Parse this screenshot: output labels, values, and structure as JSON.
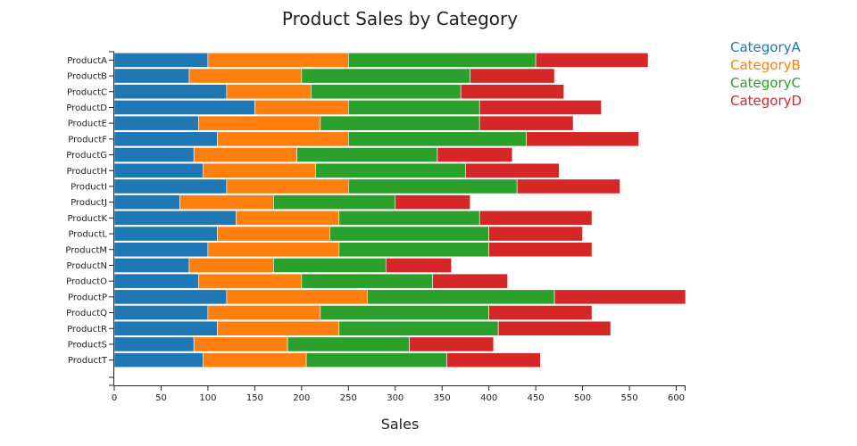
{
  "chart_data": {
    "type": "bar",
    "orientation": "horizontal",
    "stacked": true,
    "title": "Product Sales by Category",
    "xlabel": "Sales",
    "ylabel": "",
    "xlim": [
      0,
      610
    ],
    "x_ticks": [
      0,
      50,
      100,
      150,
      200,
      250,
      300,
      350,
      400,
      450,
      500,
      550,
      600
    ],
    "categories": [
      "ProductA",
      "ProductB",
      "ProductC",
      "ProductD",
      "ProductE",
      "ProductF",
      "ProductG",
      "ProductH",
      "ProductI",
      "ProductJ",
      "ProductK",
      "ProductL",
      "ProductM",
      "ProductN",
      "ProductO",
      "ProductP",
      "ProductQ",
      "ProductR",
      "ProductS",
      "ProductT"
    ],
    "series": [
      {
        "name": "CategoryA",
        "color": "#1f77b4",
        "values": [
          100,
          80,
          120,
          150,
          90,
          110,
          85,
          95,
          120,
          70,
          130,
          110,
          100,
          80,
          90,
          120,
          100,
          110,
          85,
          95
        ]
      },
      {
        "name": "CategoryB",
        "color": "#ff7f0e",
        "values": [
          150,
          120,
          90,
          100,
          130,
          140,
          110,
          120,
          130,
          100,
          110,
          120,
          140,
          90,
          110,
          150,
          120,
          130,
          100,
          110
        ]
      },
      {
        "name": "CategoryC",
        "color": "#2ca02c",
        "values": [
          200,
          180,
          160,
          140,
          170,
          190,
          150,
          160,
          180,
          130,
          150,
          170,
          160,
          120,
          140,
          200,
          180,
          170,
          130,
          150
        ]
      },
      {
        "name": "CategoryD",
        "color": "#d62728",
        "values": [
          120,
          90,
          110,
          130,
          100,
          120,
          80,
          100,
          110,
          80,
          120,
          100,
          110,
          70,
          80,
          140,
          110,
          120,
          90,
          100
        ]
      }
    ],
    "legend_position": "top-right",
    "grid": false
  }
}
